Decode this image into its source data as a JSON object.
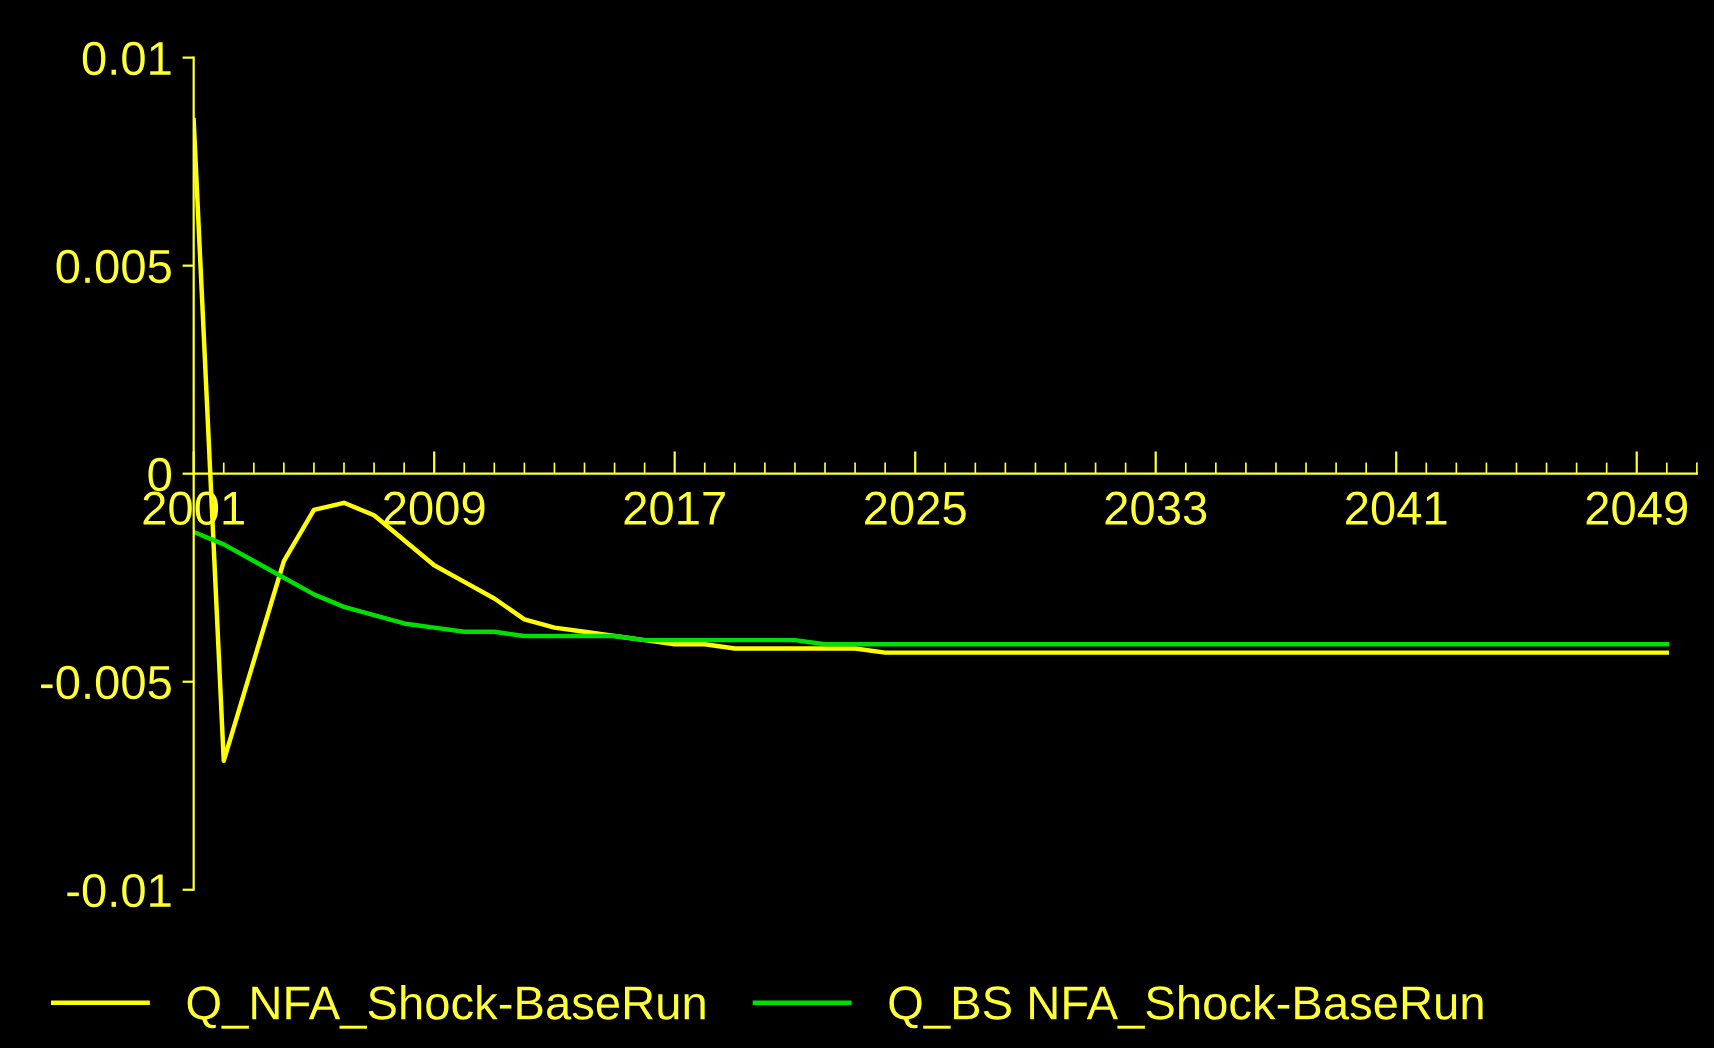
{
  "chart_data": {
    "type": "line",
    "xlim": [
      2001,
      2051
    ],
    "xticks": [
      2001,
      2009,
      2017,
      2025,
      2033,
      2041,
      2049
    ],
    "ylim": [
      -0.01,
      0.01
    ],
    "yticks": [
      -0.01,
      -0.005,
      0,
      0.005,
      0.01
    ],
    "grid": false,
    "legend": "bottom",
    "marker": "none",
    "line_style": "solid",
    "x": [
      2001,
      2002,
      2003,
      2004,
      2005,
      2006,
      2007,
      2008,
      2009,
      2010,
      2011,
      2012,
      2013,
      2014,
      2015,
      2016,
      2017,
      2018,
      2019,
      2020,
      2021,
      2022,
      2023,
      2024,
      2025,
      2026,
      2027,
      2028,
      2029,
      2030,
      2031,
      2032,
      2033,
      2034,
      2035,
      2036,
      2037,
      2038,
      2039,
      2040,
      2041,
      2042,
      2043,
      2044,
      2045,
      2046,
      2047,
      2048,
      2049,
      2050
    ],
    "series": [
      {
        "name": "Q_NFA_Shock-BaseRun",
        "color": "#ffff00",
        "values": [
          0.0085,
          -0.0069,
          -0.0045,
          -0.0021,
          -0.00087,
          -0.0007,
          -0.001,
          -0.0016,
          -0.0022,
          -0.0026,
          -0.003,
          -0.0035,
          -0.0037,
          -0.0038,
          -0.0039,
          -0.004,
          -0.0041,
          -0.0041,
          -0.0042,
          -0.0042,
          -0.0042,
          -0.0042,
          -0.0042,
          -0.0043,
          -0.0043,
          -0.0043,
          -0.0043,
          -0.0043,
          -0.0043,
          -0.0043,
          -0.0043,
          -0.0043,
          -0.0043,
          -0.0043,
          -0.0043,
          -0.0043,
          -0.0043,
          -0.0043,
          -0.0043,
          -0.0043,
          -0.0043,
          -0.0043,
          -0.0043,
          -0.0043,
          -0.0043,
          -0.0043,
          -0.0043,
          -0.0043,
          -0.0043,
          -0.0043
        ]
      },
      {
        "name": "Q_BS NFA_Shock-BaseRun",
        "color": "#00e000",
        "values": [
          -0.0014,
          -0.0017,
          -0.0021,
          -0.0025,
          -0.0029,
          -0.0032,
          -0.0034,
          -0.0036,
          -0.0037,
          -0.0038,
          -0.0038,
          -0.0039,
          -0.0039,
          -0.0039,
          -0.0039,
          -0.004,
          -0.004,
          -0.004,
          -0.004,
          -0.004,
          -0.004,
          -0.0041,
          -0.0041,
          -0.0041,
          -0.0041,
          -0.0041,
          -0.0041,
          -0.0041,
          -0.0041,
          -0.0041,
          -0.0041,
          -0.0041,
          -0.0041,
          -0.0041,
          -0.0041,
          -0.0041,
          -0.0041,
          -0.0041,
          -0.0041,
          -0.0041,
          -0.0041,
          -0.0041,
          -0.0041,
          -0.0041,
          -0.0041,
          -0.0041,
          -0.0041,
          -0.0041,
          -0.0041,
          -0.0041
        ]
      }
    ]
  }
}
